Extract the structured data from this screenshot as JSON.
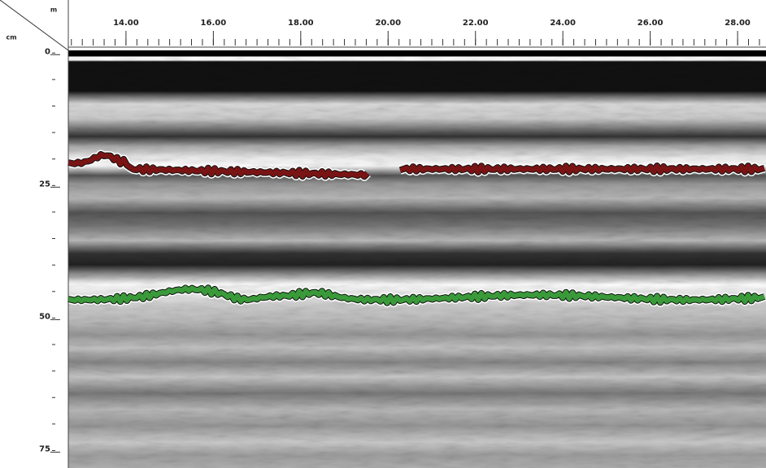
{
  "chart_data": {
    "type": "radargram",
    "x_unit": "m",
    "y_unit": "cm",
    "xlim": [
      12.68,
      28.65
    ],
    "xticks": [
      {
        "value": 14,
        "label": "14.00"
      },
      {
        "value": 16,
        "label": "16.00"
      },
      {
        "value": 18,
        "label": "18.00"
      },
      {
        "value": 20,
        "label": "20.00"
      },
      {
        "value": 22,
        "label": "22.00"
      },
      {
        "value": 24,
        "label": "24.00"
      },
      {
        "value": 26,
        "label": "26.00"
      },
      {
        "value": 28,
        "label": "28.00"
      }
    ],
    "ylim": [
      -0.5,
      78.3
    ],
    "yticks": [
      0,
      25,
      50,
      75
    ]
  }
}
